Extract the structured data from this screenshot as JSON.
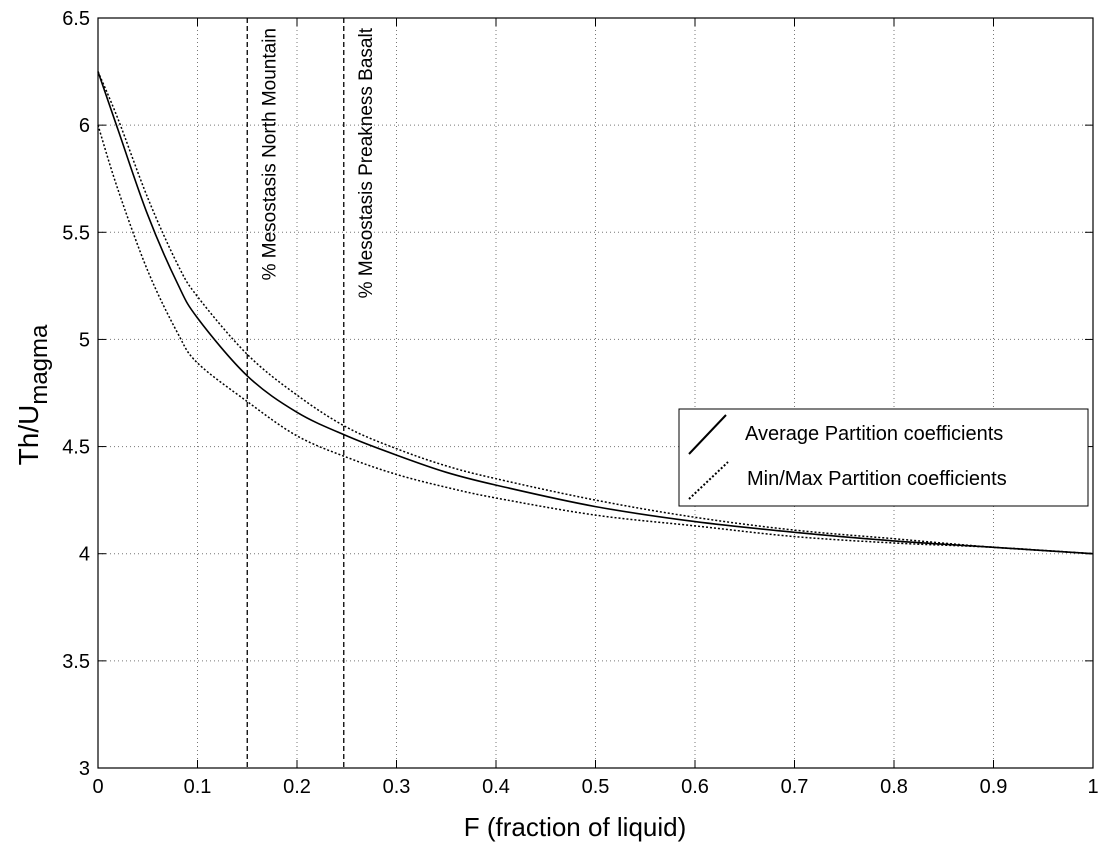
{
  "chart_data": {
    "type": "line",
    "xlabel": "F (fraction of liquid)",
    "ylabel_main": "Th/U",
    "ylabel_sub": "magma",
    "xlim": [
      0,
      1
    ],
    "ylim": [
      3,
      6.5
    ],
    "xticks": [
      0,
      0.1,
      0.2,
      0.3,
      0.4,
      0.5,
      0.6,
      0.7,
      0.8,
      0.9,
      1
    ],
    "xtick_labels": [
      "0",
      "0.1",
      "0.2",
      "0.3",
      "0.4",
      "0.5",
      "0.6",
      "0.7",
      "0.8",
      "0.9",
      "1"
    ],
    "yticks": [
      3,
      3.5,
      4,
      4.5,
      5,
      5.5,
      6,
      6.5
    ],
    "ytick_labels": [
      "3",
      "3.5",
      "4",
      "4.5",
      "5",
      "5.5",
      "6",
      "6.5"
    ],
    "grid": true,
    "legend_position": "right",
    "series": [
      {
        "name": "Average Partition coefficients",
        "style": "solid",
        "x": [
          0,
          0.02,
          0.05,
          0.08,
          0.1,
          0.15,
          0.2,
          0.25,
          0.3,
          0.35,
          0.4,
          0.5,
          0.6,
          0.7,
          0.8,
          0.9,
          1
        ],
        "y": [
          6.25,
          5.98,
          5.58,
          5.26,
          5.1,
          4.83,
          4.66,
          4.55,
          4.46,
          4.38,
          4.32,
          4.22,
          4.15,
          4.1,
          4.06,
          4.03,
          4.0
        ]
      },
      {
        "name": "Min/Max Partition coefficients",
        "style": "dotted",
        "x": [
          0,
          0.02,
          0.05,
          0.08,
          0.1,
          0.15,
          0.2,
          0.25,
          0.3,
          0.35,
          0.4,
          0.5,
          0.6,
          0.7,
          0.8,
          0.9,
          1
        ],
        "y": [
          6.25,
          6.03,
          5.66,
          5.35,
          5.2,
          4.93,
          4.74,
          4.59,
          4.49,
          4.41,
          4.35,
          4.25,
          4.17,
          4.11,
          4.07,
          4.03,
          4.0
        ]
      },
      {
        "name": "",
        "style": "dotted",
        "x": [
          0,
          0.02,
          0.05,
          0.08,
          0.1,
          0.15,
          0.2,
          0.25,
          0.3,
          0.35,
          0.4,
          0.5,
          0.6,
          0.7,
          0.8,
          0.9,
          1
        ],
        "y": [
          6.0,
          5.7,
          5.32,
          5.03,
          4.89,
          4.71,
          4.55,
          4.45,
          4.37,
          4.31,
          4.26,
          4.18,
          4.13,
          4.08,
          4.05,
          4.03,
          4.0
        ]
      }
    ],
    "vlines": [
      {
        "x": 0.15,
        "label": "% Mesostasis North Mountain"
      },
      {
        "x": 0.247,
        "label": "% Mesostasis Preakness Basalt"
      }
    ],
    "legend": [
      {
        "label": "Average Partition coefficients",
        "style": "solid"
      },
      {
        "label": "Min/Max Partition coefficients",
        "style": "dotted"
      }
    ]
  }
}
